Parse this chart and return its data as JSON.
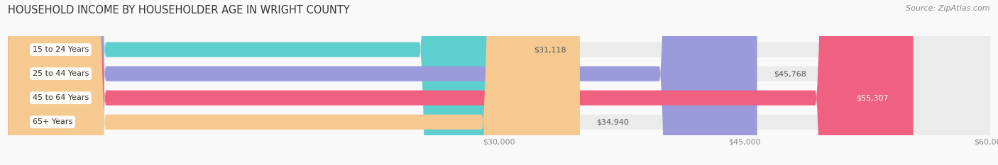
{
  "title": "HOUSEHOLD INCOME BY HOUSEHOLDER AGE IN WRIGHT COUNTY",
  "source": "Source: ZipAtlas.com",
  "categories": [
    "15 to 24 Years",
    "25 to 44 Years",
    "45 to 64 Years",
    "65+ Years"
  ],
  "values": [
    31118,
    45768,
    55307,
    34940
  ],
  "bar_colors": [
    "#5ecfcf",
    "#9b9bdb",
    "#f06080",
    "#f5c990"
  ],
  "bar_bg_color": "#ebebeb",
  "value_labels": [
    "$31,118",
    "$45,768",
    "$55,307",
    "$34,940"
  ],
  "value_label_inside": [
    false,
    false,
    true,
    false
  ],
  "xmin": 0,
  "xmax": 60000,
  "xticks": [
    30000,
    45000,
    60000
  ],
  "xtick_labels": [
    "$30,000",
    "$45,000",
    "$60,000"
  ],
  "figwidth": 14.06,
  "figheight": 2.33,
  "dpi": 100
}
